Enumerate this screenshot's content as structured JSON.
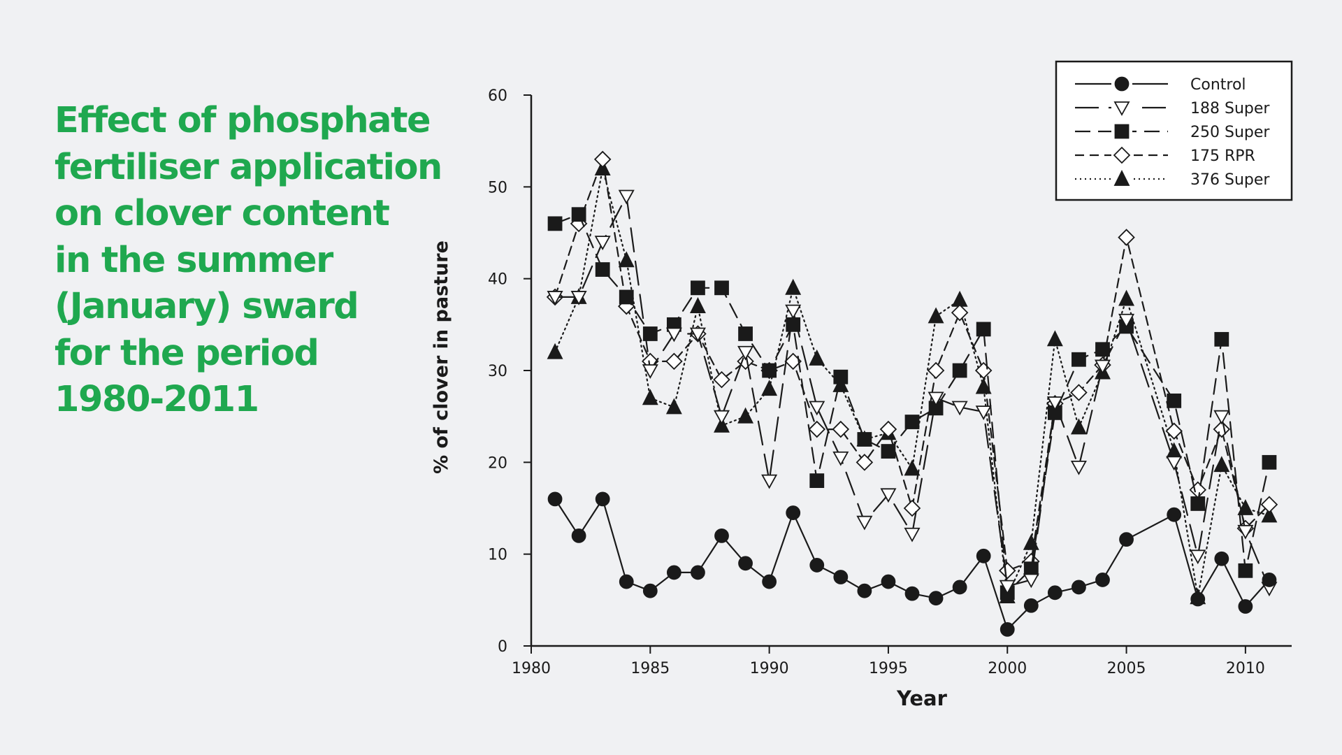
{
  "title_lines": [
    "Effect of phosphate",
    "fertiliser application",
    "on clover content",
    "in the summer",
    "(January) sward",
    "for the period",
    "1980-2011"
  ],
  "colors": {
    "background": "#f0f1f3",
    "title": "#1fa84f",
    "ink": "#1a1a1a"
  },
  "chart_data": {
    "type": "line",
    "title": "",
    "xlabel": "Year",
    "ylabel": "% of clover in pasture",
    "xlim": [
      1980,
      2012
    ],
    "ylim": [
      0,
      60
    ],
    "xticks": [
      1980,
      1985,
      1990,
      1995,
      2000,
      2005,
      2010
    ],
    "yticks": [
      0,
      10,
      20,
      30,
      40,
      50,
      60
    ],
    "grid": false,
    "legend_position": "top-right",
    "series": [
      {
        "name": "Control",
        "marker": "circle-filled",
        "line": "solid",
        "points": [
          [
            1981,
            16
          ],
          [
            1982,
            12
          ],
          [
            1983,
            16
          ],
          [
            1984,
            7
          ],
          [
            1985,
            6
          ],
          [
            1986,
            8
          ],
          [
            1987,
            8
          ],
          [
            1988,
            12
          ],
          [
            1989,
            9
          ],
          [
            1990,
            7
          ],
          [
            1991,
            14.5
          ],
          [
            1992,
            8.8
          ],
          [
            1993,
            7.5
          ],
          [
            1994,
            6
          ],
          [
            1995,
            7
          ],
          [
            1996,
            5.7
          ],
          [
            1997,
            5.2
          ],
          [
            1998,
            6.4
          ],
          [
            1999,
            9.8
          ],
          [
            2000,
            1.8
          ],
          [
            2001,
            4.4
          ],
          [
            2002,
            5.8
          ],
          [
            2003,
            6.4
          ],
          [
            2004,
            7.2
          ],
          [
            2005,
            11.6
          ],
          [
            2007,
            14.3
          ],
          [
            2008,
            5.1
          ],
          [
            2009,
            9.5
          ],
          [
            2010,
            4.3
          ],
          [
            2011,
            7.2
          ]
        ]
      },
      {
        "name": "188 Super",
        "marker": "triangle-down-open",
        "line": "long-dash",
        "points": [
          [
            1981,
            38
          ],
          [
            1982,
            38
          ],
          [
            1983,
            44
          ],
          [
            1984,
            49
          ],
          [
            1985,
            30
          ],
          [
            1986,
            34
          ],
          [
            1987,
            34
          ],
          [
            1988,
            25
          ],
          [
            1989,
            32
          ],
          [
            1990,
            18
          ],
          [
            1991,
            36.5
          ],
          [
            1992,
            26
          ],
          [
            1993,
            20.5
          ],
          [
            1994,
            13.5
          ],
          [
            1995,
            16.5
          ],
          [
            1996,
            12.2
          ],
          [
            1997,
            27
          ],
          [
            1998,
            26
          ],
          [
            1999,
            25.5
          ],
          [
            2000,
            6.5
          ],
          [
            2001,
            7.2
          ],
          [
            2002,
            26.5
          ],
          [
            2003,
            19.5
          ],
          [
            2004,
            30.5
          ],
          [
            2005,
            35.5
          ],
          [
            2007,
            20
          ],
          [
            2008,
            9.8
          ],
          [
            2009,
            25
          ],
          [
            2010,
            12.5
          ],
          [
            2011,
            6.3
          ]
        ]
      },
      {
        "name": "250 Super",
        "marker": "square-filled",
        "line": "dash",
        "points": [
          [
            1981,
            46
          ],
          [
            1982,
            47
          ],
          [
            1983,
            41
          ],
          [
            1984,
            38
          ],
          [
            1985,
            34
          ],
          [
            1986,
            35
          ],
          [
            1987,
            39
          ],
          [
            1988,
            39
          ],
          [
            1989,
            34
          ],
          [
            1990,
            30
          ],
          [
            1991,
            35
          ],
          [
            1992,
            18
          ],
          [
            1993,
            29.3
          ],
          [
            1994,
            22.5
          ],
          [
            1995,
            21.2
          ],
          [
            1996,
            24.4
          ],
          [
            1997,
            25.9
          ],
          [
            1998,
            30
          ],
          [
            1999,
            34.5
          ],
          [
            2000,
            5.8
          ],
          [
            2001,
            8.4
          ],
          [
            2002,
            25.4
          ],
          [
            2003,
            31.2
          ],
          [
            2004,
            32.3
          ],
          [
            2005,
            34.8
          ],
          [
            2007,
            26.7
          ],
          [
            2008,
            15.5
          ],
          [
            2009,
            33.4
          ],
          [
            2010,
            8.2
          ],
          [
            2011,
            20
          ]
        ]
      },
      {
        "name": "175 RPR",
        "marker": "diamond-open",
        "line": "short-dash",
        "points": [
          [
            1981,
            38
          ],
          [
            1982,
            46
          ],
          [
            1983,
            53
          ],
          [
            1984,
            37
          ],
          [
            1985,
            31
          ],
          [
            1986,
            31
          ],
          [
            1987,
            34
          ],
          [
            1988,
            29
          ],
          [
            1989,
            31
          ],
          [
            1990,
            30
          ],
          [
            1991,
            31
          ],
          [
            1992,
            23.6
          ],
          [
            1993,
            23.6
          ],
          [
            1994,
            20
          ],
          [
            1995,
            23.6
          ],
          [
            1996,
            15
          ],
          [
            1997,
            30
          ],
          [
            1998,
            36.3
          ],
          [
            1999,
            30
          ],
          [
            2000,
            8.2
          ],
          [
            2001,
            9.2
          ],
          [
            2002,
            26.4
          ],
          [
            2003,
            27.6
          ],
          [
            2004,
            30.6
          ],
          [
            2005,
            44.5
          ],
          [
            2007,
            23.4
          ],
          [
            2008,
            17
          ],
          [
            2009,
            23.6
          ],
          [
            2010,
            12.8
          ],
          [
            2011,
            15.4
          ]
        ]
      },
      {
        "name": "376 Super",
        "marker": "triangle-up-filled",
        "line": "dotted",
        "points": [
          [
            1981,
            32
          ],
          [
            1982,
            38
          ],
          [
            1983,
            52
          ],
          [
            1984,
            42
          ],
          [
            1985,
            27
          ],
          [
            1986,
            26
          ],
          [
            1987,
            37
          ],
          [
            1988,
            24
          ],
          [
            1989,
            25
          ],
          [
            1990,
            28
          ],
          [
            1991,
            39
          ],
          [
            1992,
            31.3
          ],
          [
            1993,
            28.4
          ],
          [
            1994,
            22.5
          ],
          [
            1995,
            23.2
          ],
          [
            1996,
            19.3
          ],
          [
            1997,
            35.9
          ],
          [
            1998,
            37.7
          ],
          [
            1999,
            28.2
          ],
          [
            2000,
            5.4
          ],
          [
            2001,
            11.2
          ],
          [
            2002,
            33.4
          ],
          [
            2003,
            23.8
          ],
          [
            2004,
            29.8
          ],
          [
            2005,
            37.8
          ],
          [
            2007,
            21.2
          ],
          [
            2008,
            5.3
          ],
          [
            2009,
            19.7
          ],
          [
            2010,
            15
          ],
          [
            2011,
            14.2
          ]
        ]
      }
    ]
  }
}
